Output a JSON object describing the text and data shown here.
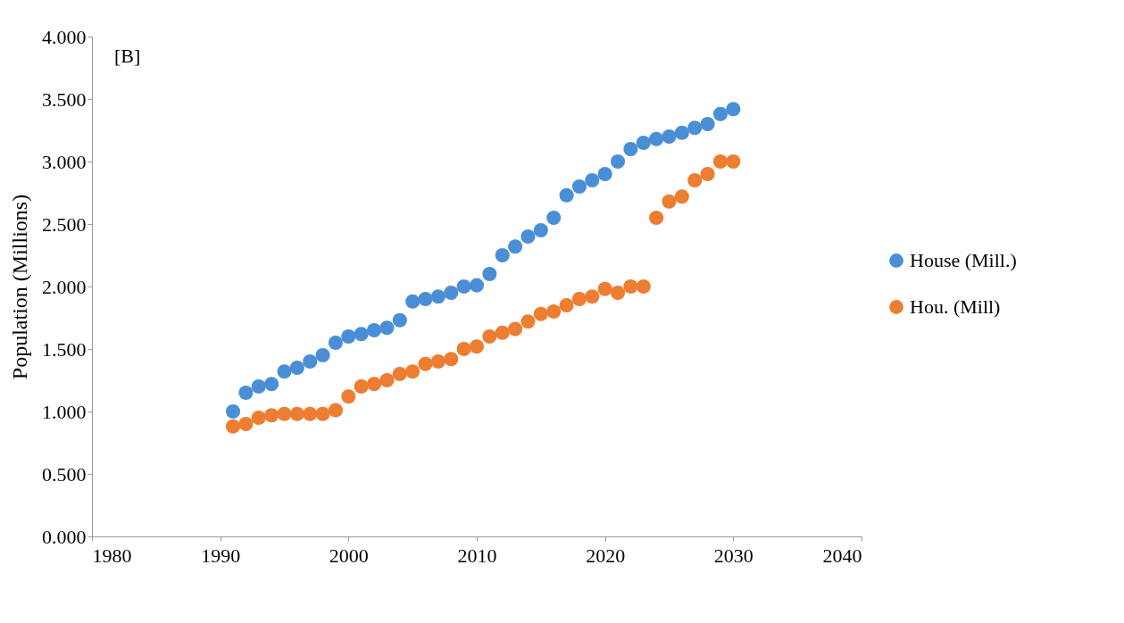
{
  "chart_data": {
    "type": "scatter",
    "ylabel": "Population (Millions)",
    "annotations": [
      "[B]"
    ],
    "x": [
      1991,
      1992,
      1993,
      1994,
      1995,
      1996,
      1997,
      1998,
      1999,
      2000,
      2001,
      2002,
      2003,
      2004,
      2005,
      2006,
      2007,
      2008,
      2009,
      2010,
      2011,
      2012,
      2013,
      2014,
      2015,
      2016,
      2017,
      2018,
      2019,
      2020,
      2021,
      2022,
      2023,
      2024,
      2025,
      2026,
      2027,
      2028,
      2029,
      2030
    ],
    "series": [
      {
        "name": "House (Mill.)",
        "color": "#4a8fd6",
        "values": [
          1.0,
          1.15,
          1.2,
          1.22,
          1.32,
          1.35,
          1.4,
          1.45,
          1.55,
          1.6,
          1.62,
          1.65,
          1.67,
          1.73,
          1.88,
          1.9,
          1.92,
          1.95,
          2.0,
          2.01,
          2.1,
          2.25,
          2.32,
          2.4,
          2.45,
          2.55,
          2.73,
          2.8,
          2.85,
          2.9,
          3.0,
          3.1,
          3.15,
          3.18,
          3.2,
          3.23,
          3.27,
          3.3,
          3.38,
          3.42
        ]
      },
      {
        "name": "Hou. (Mill)",
        "color": "#ed7d31",
        "values": [
          0.88,
          0.9,
          0.95,
          0.97,
          0.98,
          0.98,
          0.98,
          0.98,
          1.01,
          1.12,
          1.2,
          1.22,
          1.25,
          1.3,
          1.32,
          1.38,
          1.4,
          1.42,
          1.5,
          1.52,
          1.6,
          1.63,
          1.66,
          1.72,
          1.78,
          1.8,
          1.85,
          1.9,
          1.92,
          1.98,
          1.95,
          2.0,
          2.0,
          2.55,
          2.68,
          2.72,
          2.85,
          2.9,
          3.0,
          3.0
        ]
      }
    ],
    "xlim": [
      1980,
      2040
    ],
    "xticks": [
      1980,
      1990,
      2000,
      2010,
      2020,
      2030,
      2040
    ],
    "ylim": [
      0,
      4
    ],
    "yticks": [
      {
        "value": 0,
        "label": "0.000"
      },
      {
        "value": 0.5,
        "label": "0.500"
      },
      {
        "value": 1,
        "label": "1.000"
      },
      {
        "value": 1.5,
        "label": "1.500"
      },
      {
        "value": 2,
        "label": "2.000"
      },
      {
        "value": 2.5,
        "label": "2.500"
      },
      {
        "value": 3,
        "label": "3.000"
      },
      {
        "value": 3.5,
        "label": "3.500"
      },
      {
        "value": 4,
        "label": "4.000"
      }
    ],
    "grid": false,
    "legend": "right",
    "marker": "circle"
  }
}
